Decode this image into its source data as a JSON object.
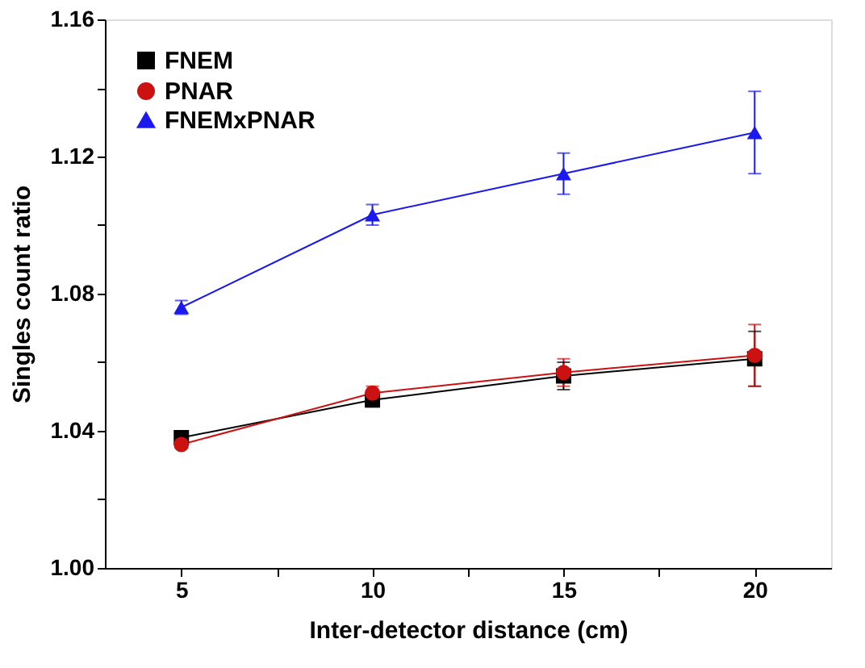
{
  "chart_data": {
    "type": "line",
    "xlabel": "Inter-detector distance (cm)",
    "ylabel": "Singles count ratio",
    "x": [
      5,
      10,
      15,
      20
    ],
    "series": [
      {
        "name": "FNEM",
        "color": "#000000",
        "marker": "square",
        "values": [
          1.038,
          1.049,
          1.056,
          1.061
        ],
        "errors": [
          0.001,
          0.002,
          0.004,
          0.008
        ]
      },
      {
        "name": "PNAR",
        "color": "#cc1111",
        "marker": "circle",
        "values": [
          1.036,
          1.051,
          1.057,
          1.062
        ],
        "errors": [
          0.001,
          0.002,
          0.004,
          0.009
        ]
      },
      {
        "name": "FNEMxPNAR",
        "color": "#1a1aee",
        "marker": "triangle",
        "values": [
          1.076,
          1.103,
          1.115,
          1.127
        ],
        "errors": [
          0.002,
          0.003,
          0.006,
          0.012
        ]
      }
    ],
    "xlim": [
      3,
      22
    ],
    "xticks": [
      5,
      {
        "value": 7.5,
        "label": null
      },
      10,
      {
        "value": 12.5,
        "label": null
      },
      15,
      {
        "value": 17.5,
        "label": null
      },
      20
    ],
    "ylim": [
      1.0,
      1.16
    ],
    "yticks": [
      {
        "value": 1.0,
        "label": "1.00"
      },
      {
        "value": 1.02,
        "label": null
      },
      {
        "value": 1.04,
        "label": "1.04"
      },
      {
        "value": 1.06,
        "label": null
      },
      {
        "value": 1.08,
        "label": "1.08"
      },
      {
        "value": 1.1,
        "label": null
      },
      {
        "value": 1.12,
        "label": "1.12"
      },
      {
        "value": 1.14,
        "label": null
      },
      {
        "value": 1.16,
        "label": "1.16"
      }
    ],
    "legend": "top left",
    "grid": false,
    "line_style": "solid"
  }
}
